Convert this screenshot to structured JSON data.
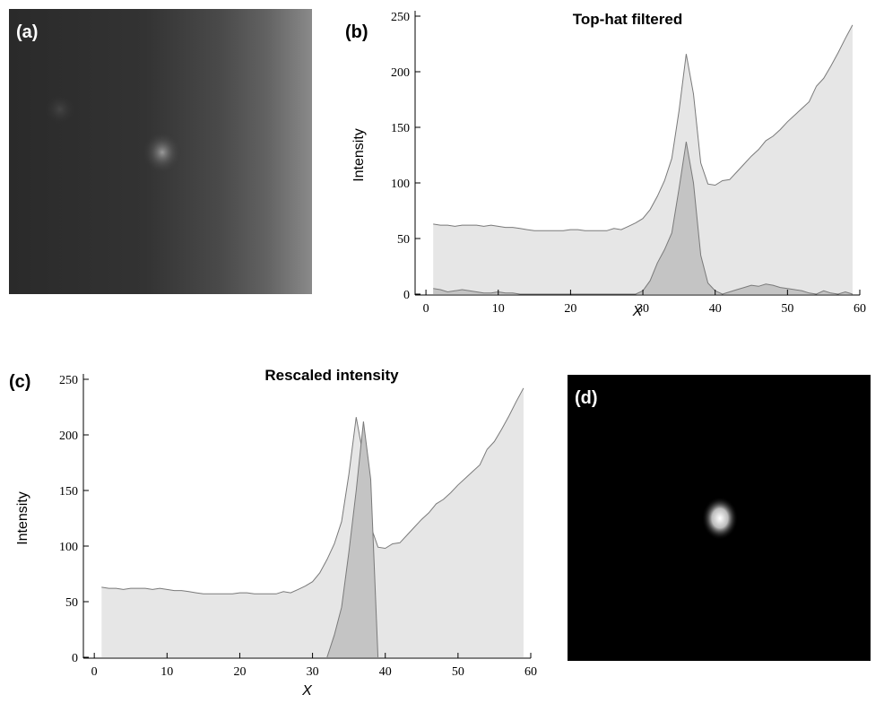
{
  "images": [
    {
      "label": "(a)"
    },
    {
      "label": "(d)"
    }
  ],
  "chart_data": [
    {
      "type": "area",
      "panel_label": "(b)",
      "title": "Top-hat filtered",
      "xlabel": "X",
      "ylabel": "Intensity",
      "x": [
        1,
        2,
        3,
        4,
        5,
        6,
        7,
        8,
        9,
        10,
        11,
        12,
        13,
        14,
        15,
        16,
        17,
        18,
        19,
        20,
        21,
        22,
        23,
        24,
        25,
        26,
        27,
        28,
        29,
        30,
        31,
        32,
        33,
        34,
        35,
        36,
        37,
        38,
        39,
        40,
        41,
        42,
        43,
        44,
        45,
        46,
        47,
        48,
        49,
        50,
        51,
        52,
        53,
        54,
        55,
        56,
        57,
        58,
        59
      ],
      "series": [
        {
          "color": "#e6e6e6",
          "values": [
            63,
            62,
            62,
            61,
            62,
            62,
            62,
            61,
            62,
            61,
            60,
            60,
            59,
            58,
            57,
            57,
            57,
            57,
            57,
            58,
            58,
            57,
            57,
            57,
            57,
            59,
            58,
            61,
            64,
            68,
            76,
            88,
            102,
            122,
            165,
            216,
            180,
            118,
            99,
            98,
            102,
            103,
            110,
            117,
            124,
            130,
            138,
            142,
            148,
            155,
            161,
            167,
            173,
            187,
            194,
            205,
            217,
            230,
            242
          ]
        },
        {
          "color": "#c4c4c4",
          "values": [
            5,
            4,
            2,
            3,
            4,
            3,
            2,
            1,
            1,
            2,
            1,
            1,
            0,
            0,
            0,
            0,
            0,
            0,
            0,
            0,
            0,
            0,
            0,
            0,
            0,
            0,
            0,
            0,
            0,
            3,
            12,
            28,
            40,
            55,
            95,
            137,
            100,
            35,
            10,
            3,
            0,
            2,
            4,
            6,
            8,
            7,
            9,
            8,
            6,
            5,
            4,
            3,
            1,
            0,
            3,
            1,
            0,
            2,
            0
          ]
        }
      ],
      "xlim": [
        -1.5,
        60
      ],
      "xticks": [
        0,
        10,
        20,
        30,
        40,
        50,
        60
      ],
      "ylim": [
        0,
        250
      ],
      "yticks": [
        0,
        50,
        100,
        150,
        200,
        250
      ]
    },
    {
      "type": "area",
      "panel_label": "(c)",
      "title": "Rescaled intensity",
      "xlabel": "X",
      "ylabel": "Intensity",
      "x": [
        1,
        2,
        3,
        4,
        5,
        6,
        7,
        8,
        9,
        10,
        11,
        12,
        13,
        14,
        15,
        16,
        17,
        18,
        19,
        20,
        21,
        22,
        23,
        24,
        25,
        26,
        27,
        28,
        29,
        30,
        31,
        32,
        33,
        34,
        35,
        36,
        37,
        38,
        39,
        40,
        41,
        42,
        43,
        44,
        45,
        46,
        47,
        48,
        49,
        50,
        51,
        52,
        53,
        54,
        55,
        56,
        57,
        58,
        59
      ],
      "series": [
        {
          "color": "#e6e6e6",
          "values": [
            63,
            62,
            62,
            61,
            62,
            62,
            62,
            61,
            62,
            61,
            60,
            60,
            59,
            58,
            57,
            57,
            57,
            57,
            57,
            58,
            58,
            57,
            57,
            57,
            57,
            59,
            58,
            61,
            64,
            68,
            76,
            88,
            102,
            122,
            165,
            216,
            180,
            118,
            99,
            98,
            102,
            103,
            110,
            117,
            124,
            130,
            138,
            142,
            148,
            155,
            161,
            167,
            173,
            187,
            194,
            205,
            217,
            230,
            242
          ]
        },
        {
          "color": "#c4c4c4",
          "values": [
            null,
            null,
            null,
            null,
            null,
            null,
            null,
            null,
            null,
            null,
            null,
            null,
            null,
            null,
            null,
            null,
            null,
            null,
            null,
            null,
            null,
            null,
            null,
            null,
            null,
            null,
            null,
            null,
            null,
            null,
            null,
            0,
            20,
            45,
            95,
            150,
            212,
            160,
            0,
            null,
            null,
            null,
            null,
            null,
            null,
            null,
            null,
            null,
            null,
            null,
            null,
            null,
            null,
            null,
            null,
            null,
            null,
            null,
            null
          ]
        }
      ],
      "xlim": [
        -1.5,
        60
      ],
      "xticks": [
        0,
        10,
        20,
        30,
        40,
        50,
        60
      ],
      "ylim": [
        0,
        250
      ],
      "yticks": [
        0,
        50,
        100,
        150,
        200,
        250
      ]
    }
  ]
}
